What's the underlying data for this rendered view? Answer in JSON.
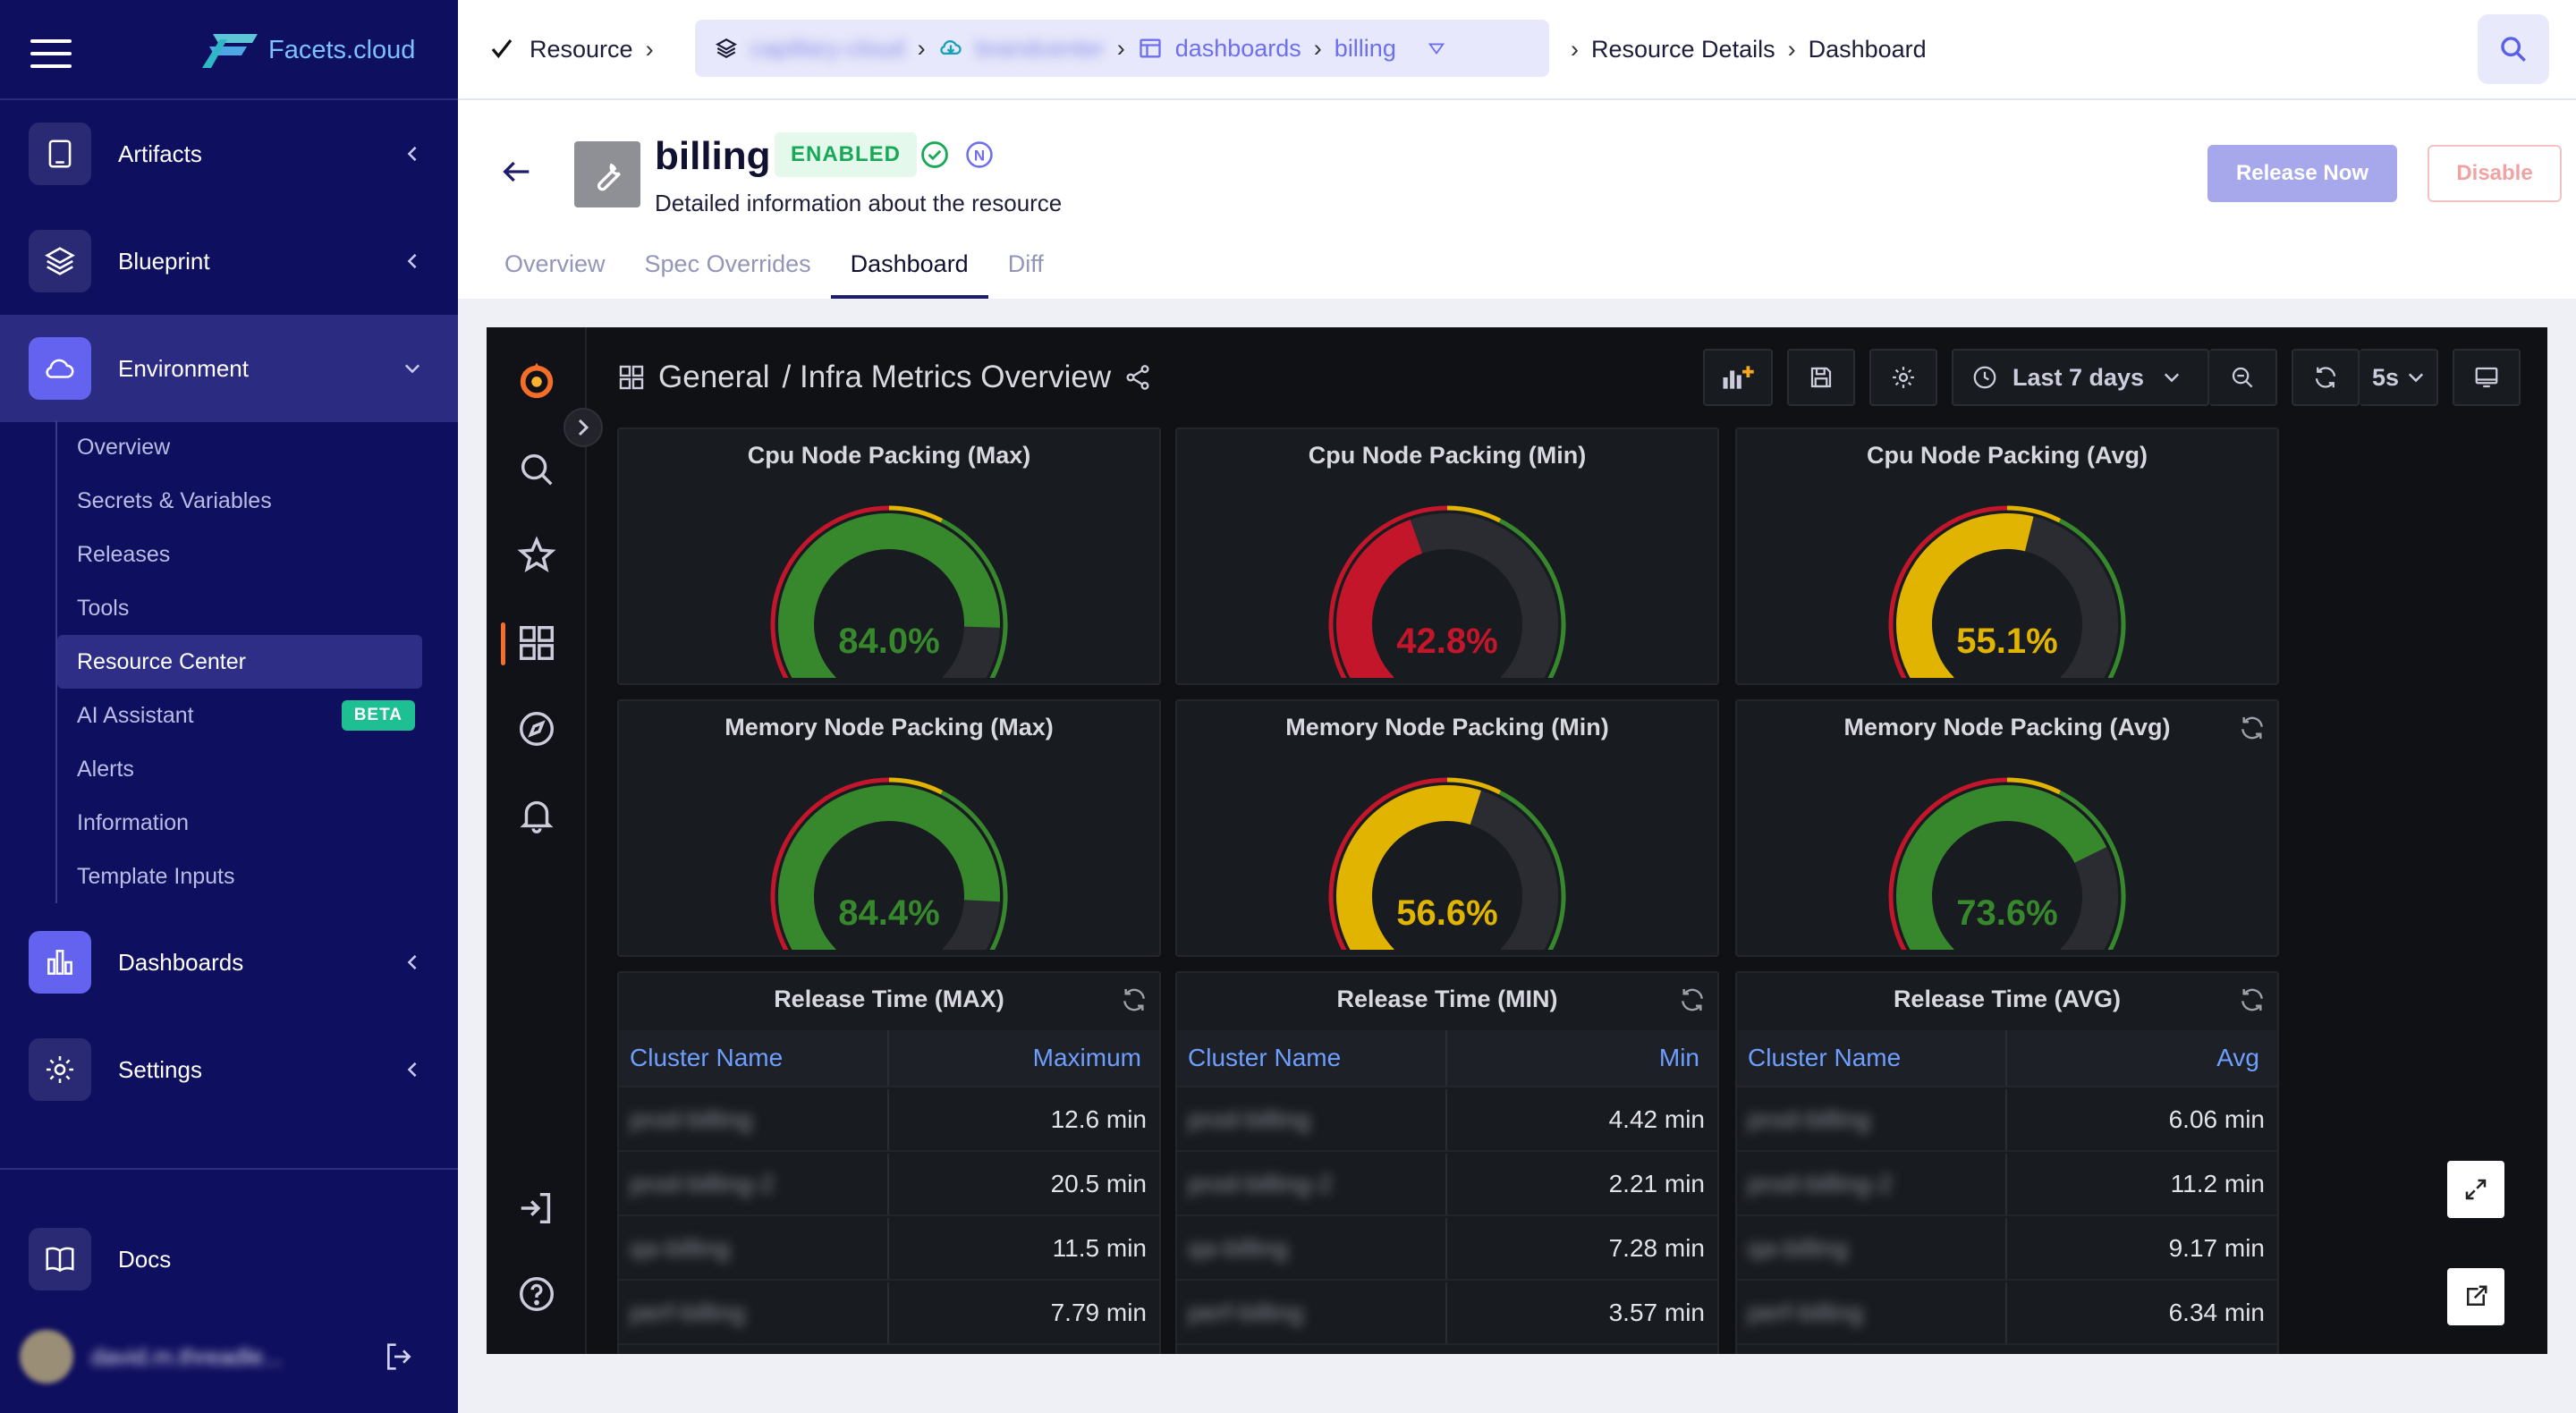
{
  "brand": {
    "name": "Facets.cloud"
  },
  "sidebar": {
    "items": [
      {
        "label": "Artifacts",
        "icon": "tablet-icon"
      },
      {
        "label": "Blueprint",
        "icon": "layers-icon"
      },
      {
        "label": "Environment",
        "icon": "cloud-icon"
      },
      {
        "label": "Dashboards",
        "icon": "bar-chart-icon"
      },
      {
        "label": "Settings",
        "icon": "gear-icon"
      },
      {
        "label": "Docs",
        "icon": "book-icon"
      }
    ],
    "env_subitems": [
      {
        "label": "Overview"
      },
      {
        "label": "Secrets & Variables"
      },
      {
        "label": "Releases"
      },
      {
        "label": "Tools"
      },
      {
        "label": "Resource Center"
      },
      {
        "label": "AI Assistant",
        "badge": "BETA"
      },
      {
        "label": "Alerts"
      },
      {
        "label": "Information"
      },
      {
        "label": "Template Inputs"
      }
    ],
    "user_name": "david.m.threadle..."
  },
  "breadcrumb": {
    "root": "Resource",
    "blurred_1": "capillary-cloud",
    "blurred_2": "brandcenter",
    "dashboards": "dashboards",
    "billing": "billing",
    "details": "Resource Details",
    "current": "Dashboard"
  },
  "resource": {
    "title": "billing",
    "status": "ENABLED",
    "n_badge": "N",
    "description": "Detailed information about the resource",
    "release_button": "Release Now",
    "disable_button": "Disable"
  },
  "tabs": [
    "Overview",
    "Spec Overrides",
    "Dashboard",
    "Diff"
  ],
  "grafana": {
    "folder": "General",
    "dashboard": "/ Infra Metrics Overview",
    "time_range": "Last 7 days",
    "refresh": "5s",
    "gauges": [
      {
        "title": "Cpu Node Packing (Max)",
        "value": 84.0,
        "display": "84.0%",
        "color": "#37872d"
      },
      {
        "title": "Cpu Node Packing (Min)",
        "value": 42.8,
        "display": "42.8%",
        "color": "#c4162a"
      },
      {
        "title": "Cpu Node Packing (Avg)",
        "value": 55.1,
        "display": "55.1%",
        "color": "#e0b400"
      },
      {
        "title": "Memory Node Packing (Max)",
        "value": 84.4,
        "display": "84.4%",
        "color": "#37872d"
      },
      {
        "title": "Memory Node Packing (Min)",
        "value": 56.6,
        "display": "56.6%",
        "color": "#e0b400"
      },
      {
        "title": "Memory Node Packing (Avg)",
        "value": 73.6,
        "display": "73.6%",
        "color": "#37872d"
      }
    ],
    "tables": [
      {
        "title": "Release Time (MAX)",
        "col1": "Cluster Name",
        "col2": "Maximum",
        "rows": [
          [
            "prod-billing",
            "12.6 min"
          ],
          [
            "prod-billing-2",
            "20.5 min"
          ],
          [
            "qa-billing",
            "11.5 min"
          ],
          [
            "perf-billing",
            "7.79 min"
          ]
        ]
      },
      {
        "title": "Release Time (MIN)",
        "col1": "Cluster Name",
        "col2": "Min",
        "rows": [
          [
            "prod-billing",
            "4.42 min"
          ],
          [
            "prod-billing-2",
            "2.21 min"
          ],
          [
            "qa-billing",
            "7.28 min"
          ],
          [
            "perf-billing",
            "3.57 min"
          ]
        ]
      },
      {
        "title": "Release Time (AVG)",
        "col1": "Cluster Name",
        "col2": "Avg",
        "rows": [
          [
            "prod-billing",
            "6.06 min"
          ],
          [
            "prod-billing-2",
            "11.2 min"
          ],
          [
            "qa-billing",
            "9.17 min"
          ],
          [
            "perf-billing",
            "6.34 min"
          ]
        ]
      }
    ]
  },
  "colors": {
    "sidebar_bg": "#0f0f5f",
    "accent": "#6363f0",
    "grafana_bg": "#101114",
    "green": "#37872d",
    "red": "#c4162a",
    "yellow": "#e0b400"
  }
}
